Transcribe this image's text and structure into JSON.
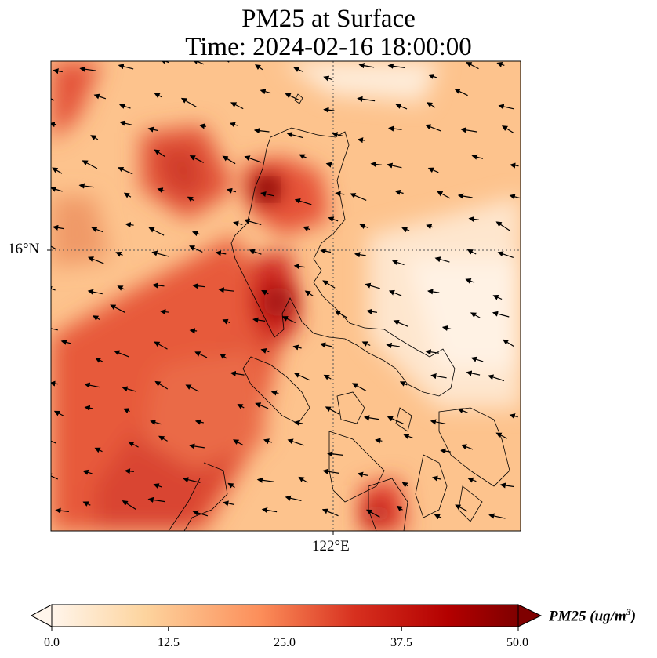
{
  "header": {
    "title_line1": "PM25 at Surface",
    "title_line2": "Time: 2024-02-16 18:00:00"
  },
  "map": {
    "lat_tick": "16°N",
    "lon_tick": "122°E",
    "gridline_color": "#555555",
    "coastline_color": "#000000"
  },
  "colorbar": {
    "label_main": "PM25 (ug/m",
    "label_sup": "3",
    "label_end": ")",
    "ticks": [
      "0.0",
      "12.5",
      "25.0",
      "37.5",
      "50.0"
    ],
    "colors": [
      "#fff5eb",
      "#fdd49e",
      "#fc8d59",
      "#d7301f",
      "#b30000",
      "#7f0000"
    ],
    "min": 0,
    "max": 50
  }
}
